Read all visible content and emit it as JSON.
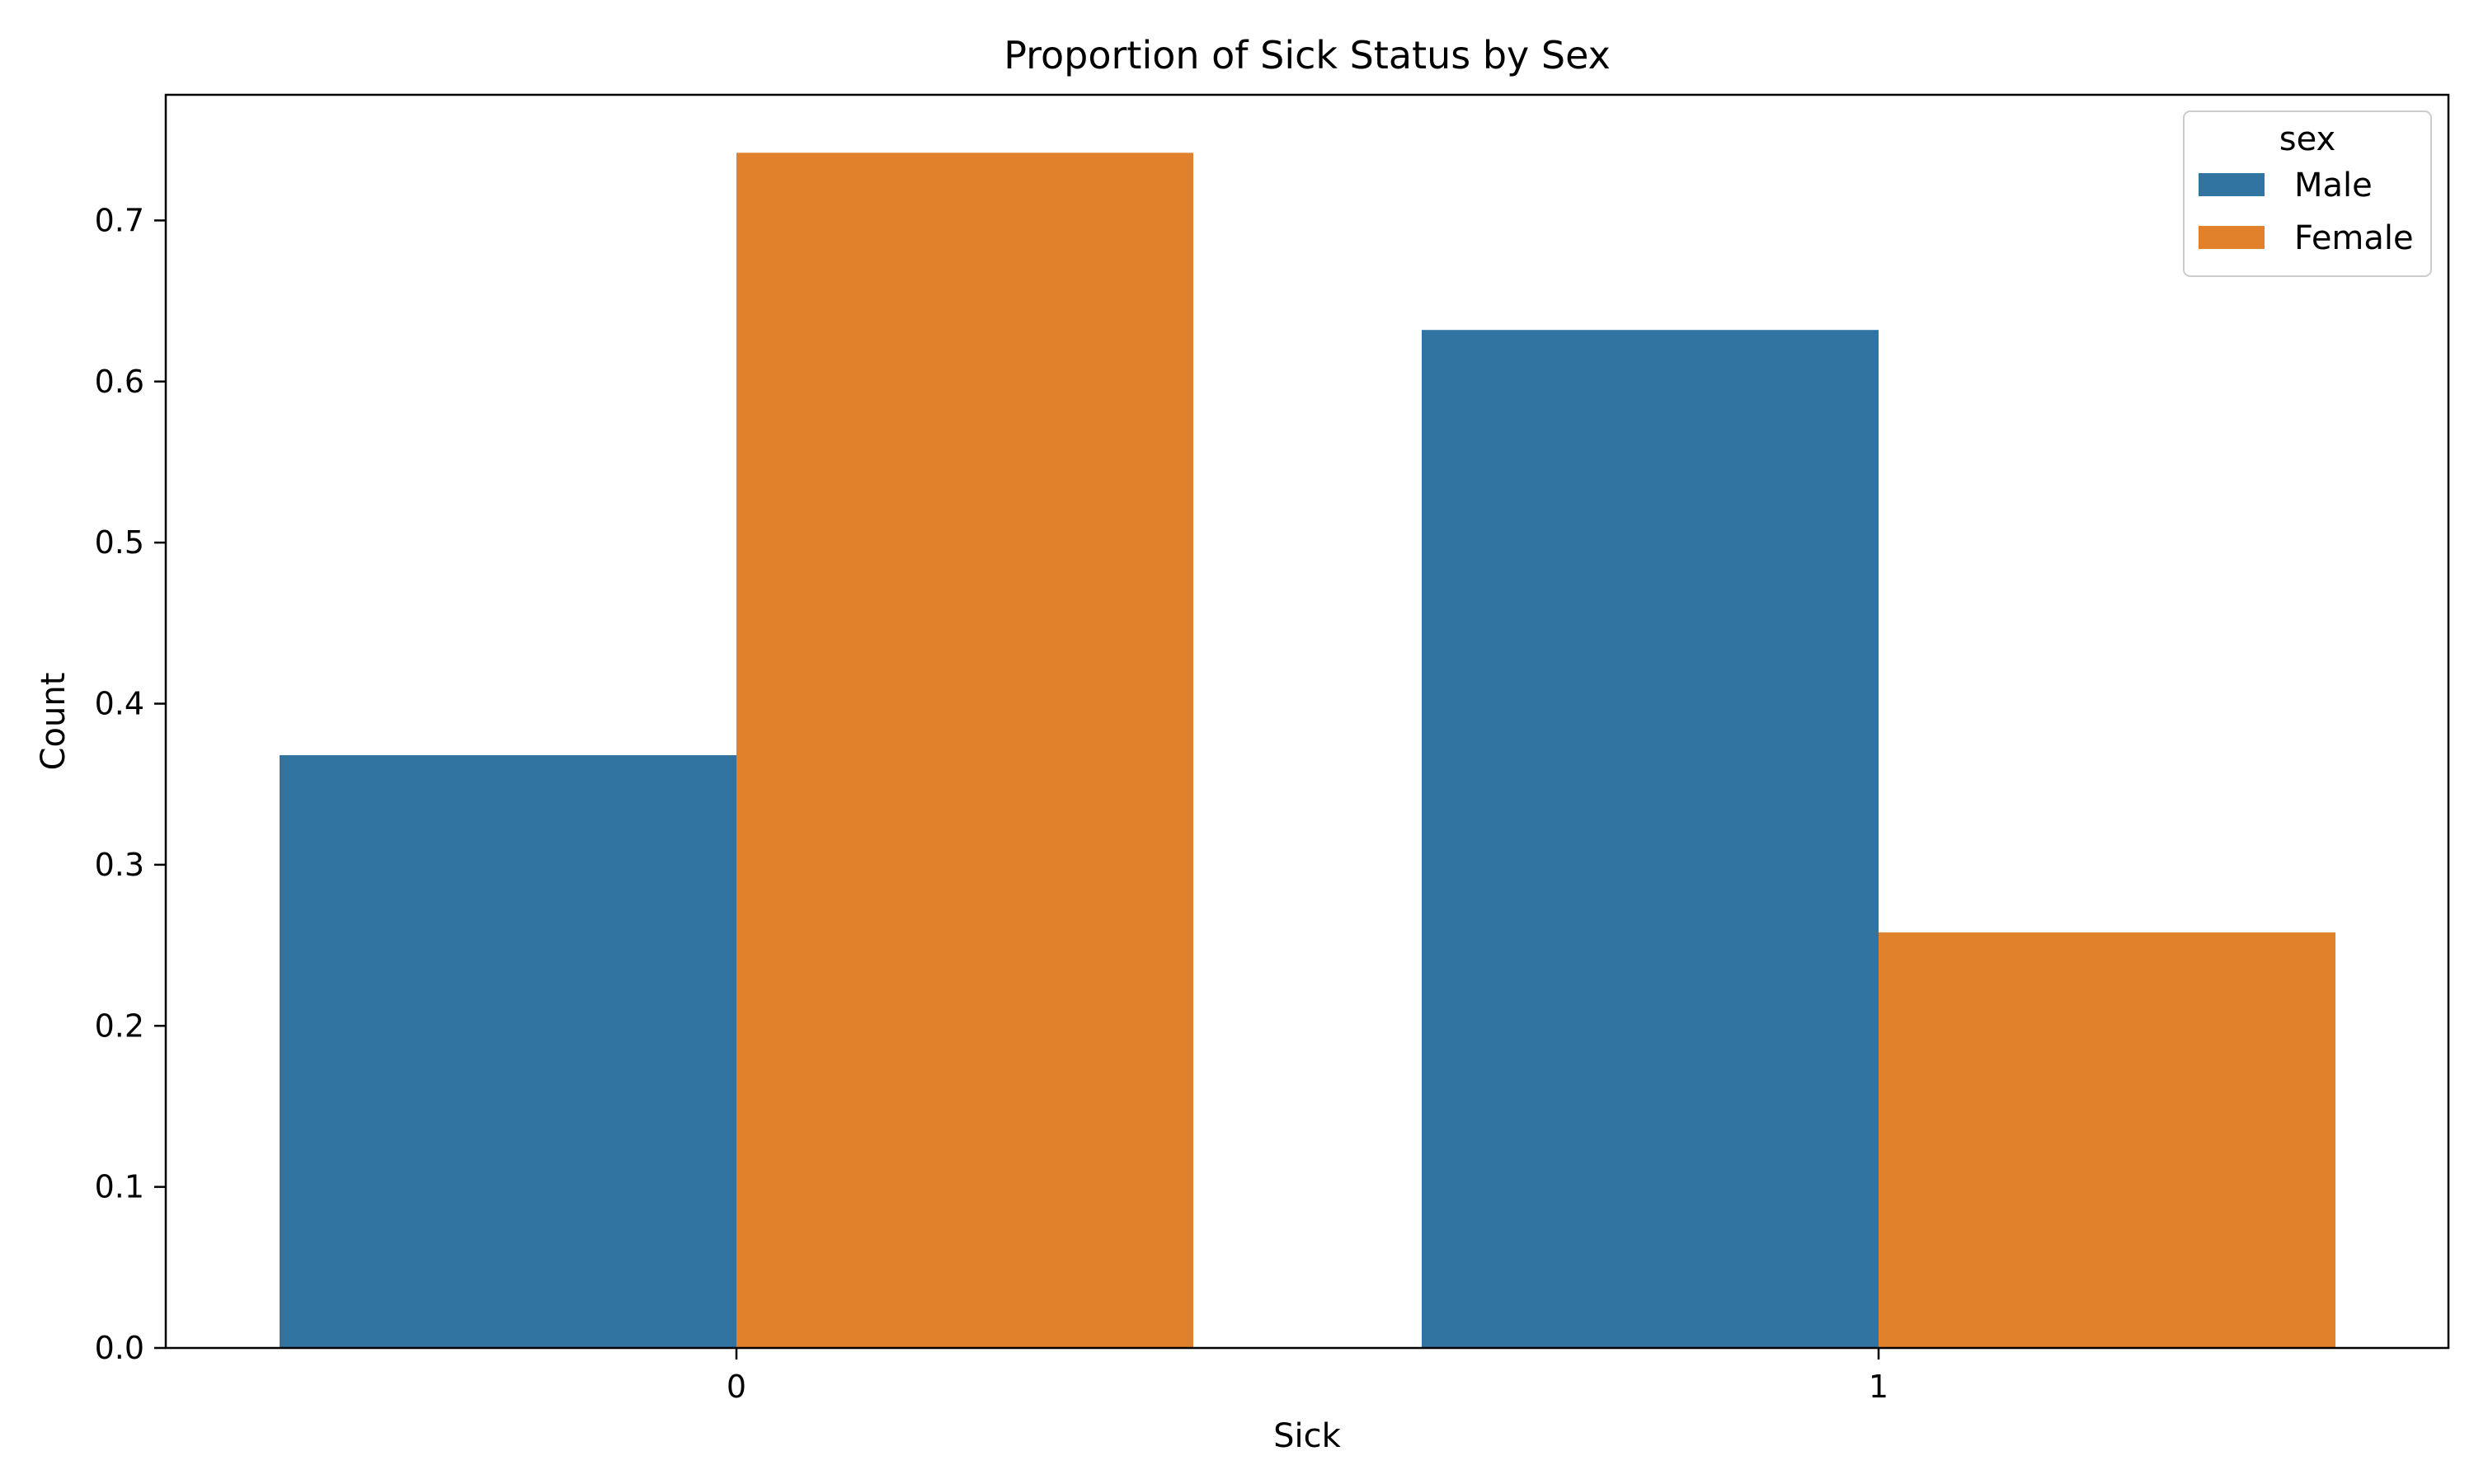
{
  "chart_data": {
    "type": "bar",
    "title": "Proportion of Sick Status by Sex",
    "xlabel": "Sick",
    "ylabel": "Count",
    "categories": [
      "0",
      "1"
    ],
    "series": [
      {
        "name": "Male",
        "color": "#3274a1",
        "values": [
          0.368,
          0.632
        ]
      },
      {
        "name": "Female",
        "color": "#e1812c",
        "values": [
          0.742,
          0.258
        ]
      }
    ],
    "ylim": [
      0,
      0.778
    ],
    "yticks": [
      "0.0",
      "0.1",
      "0.2",
      "0.3",
      "0.4",
      "0.5",
      "0.6",
      "0.7"
    ],
    "legend": {
      "title": "sex",
      "placement": "top-right"
    },
    "grid": false
  }
}
